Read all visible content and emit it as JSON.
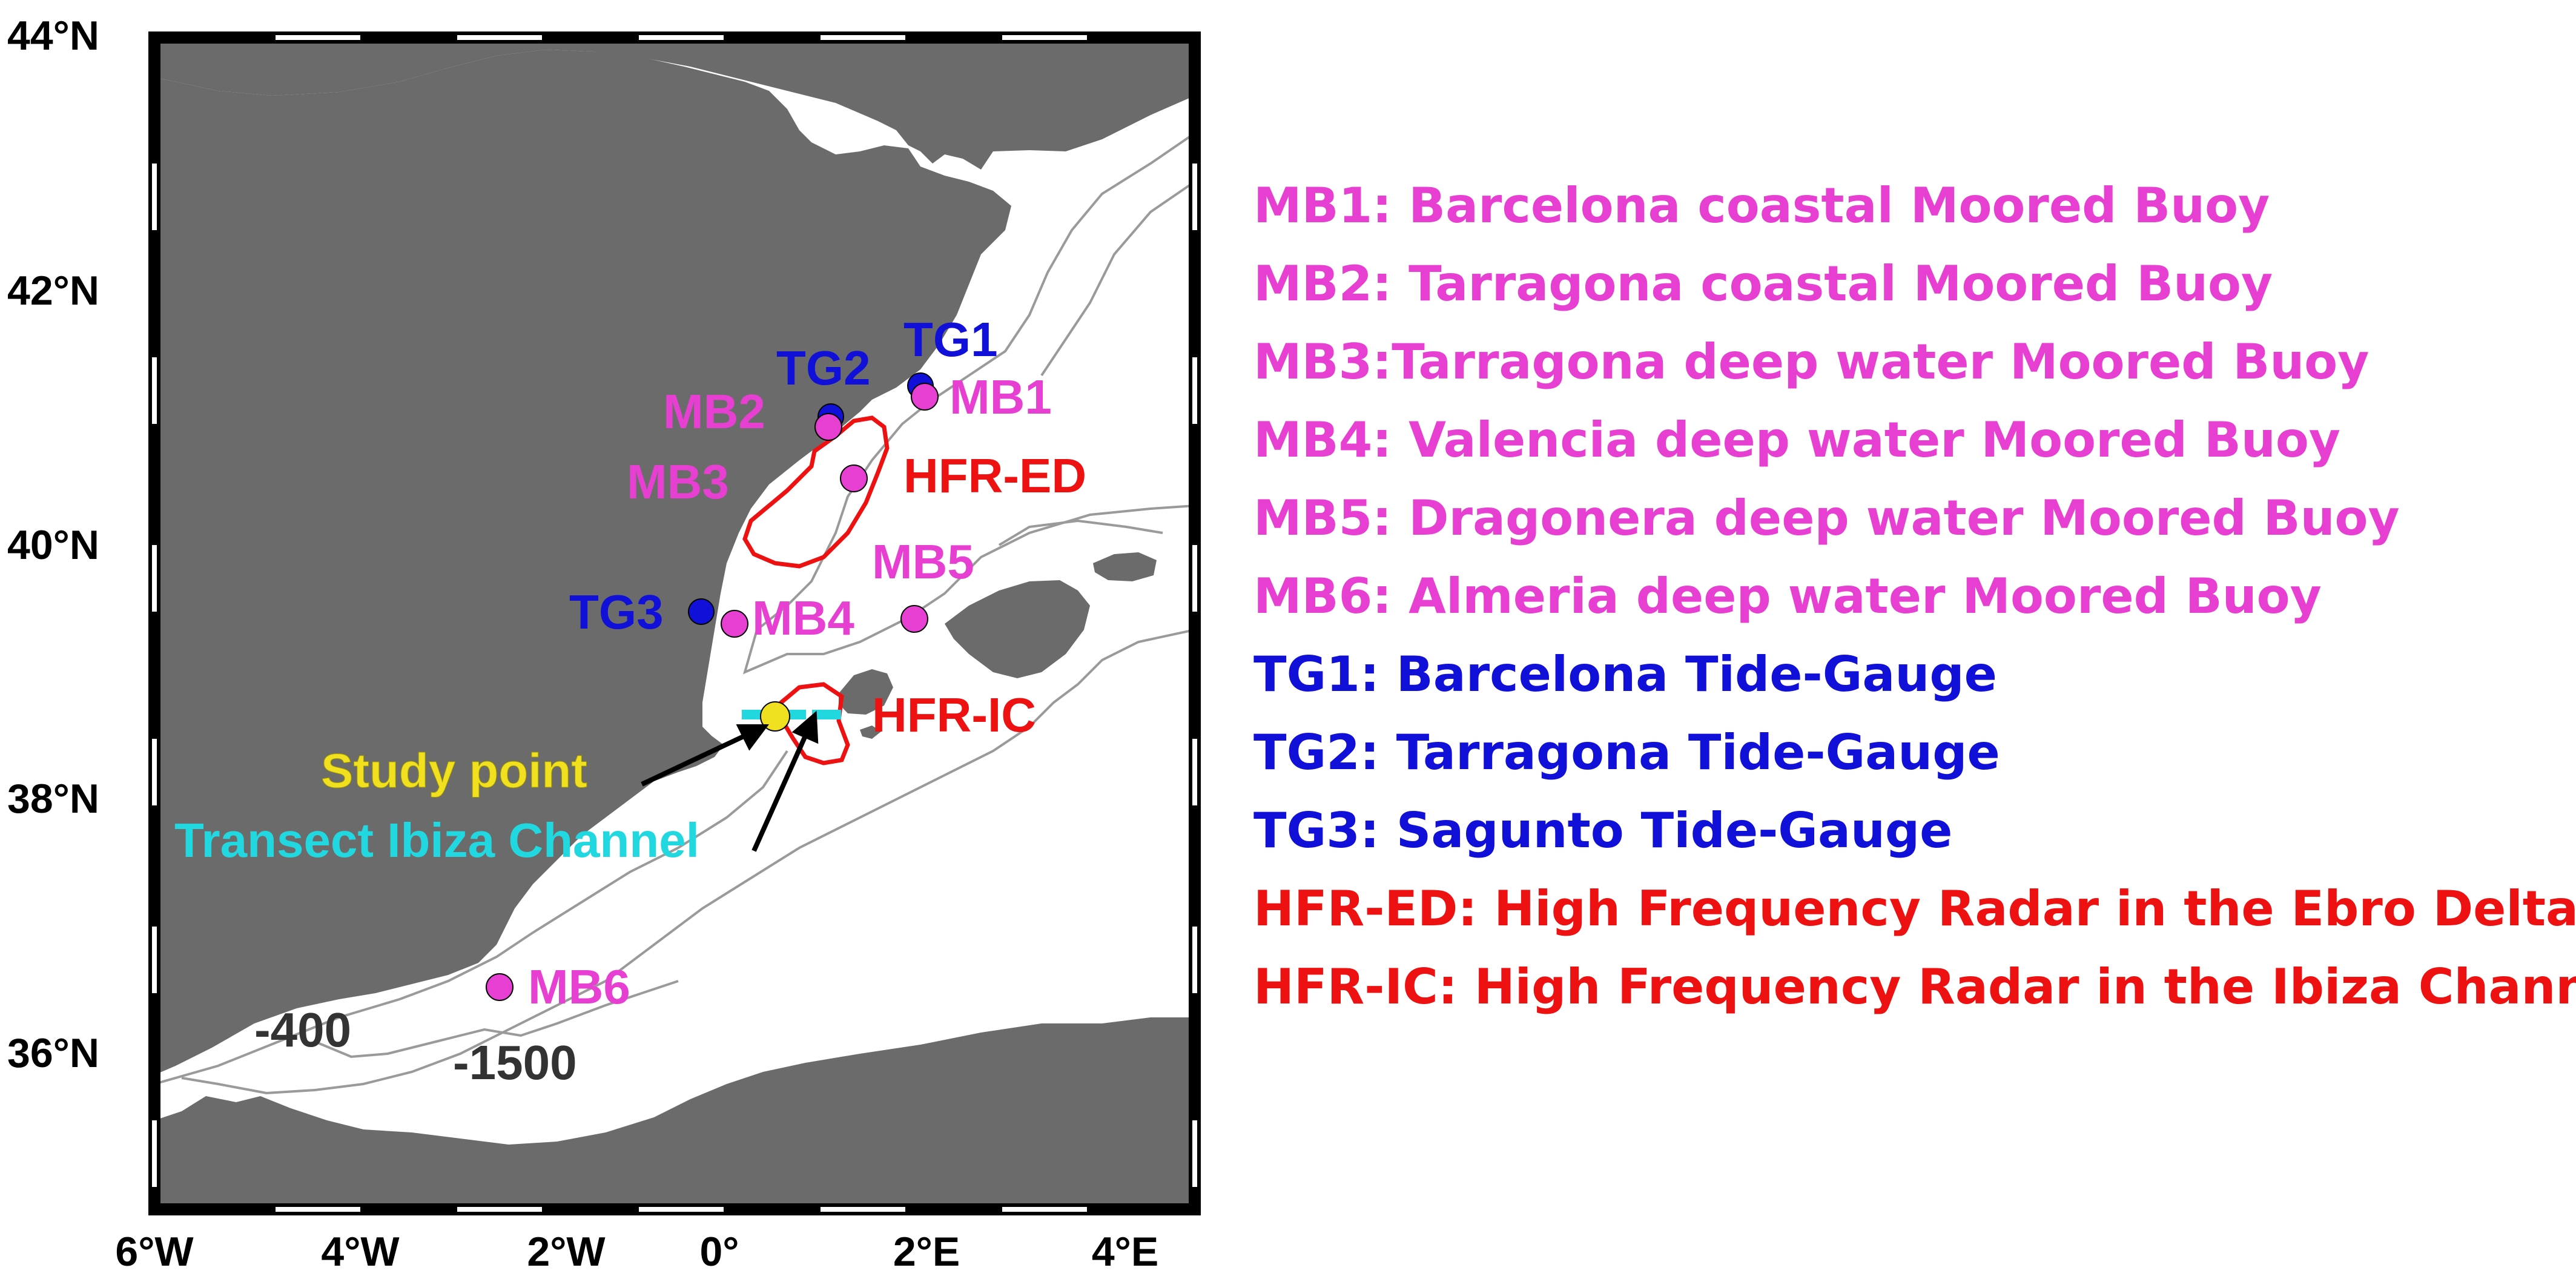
{
  "map": {
    "lat_ticks": [
      "44°N",
      "42°N",
      "40°N",
      "38°N",
      "36°N"
    ],
    "lon_ticks": [
      "6°W",
      "4°W",
      "2°W",
      "0°",
      "2°E",
      "4°E"
    ],
    "depth_labels": [
      "-400",
      "-1500"
    ],
    "stations": {
      "TG1": "TG1",
      "TG2": "TG2",
      "TG3": "TG3",
      "MB1": "MB1",
      "MB2": "MB2",
      "MB3": "MB3",
      "MB4": "MB4",
      "MB5": "MB5",
      "MB6": "MB6",
      "HFR_ED": "HFR-ED",
      "HFR_IC": "HFR-IC"
    },
    "annotations": {
      "study_point": "Study point",
      "transect": "Transect Ibiza Channel"
    }
  },
  "legend": [
    {
      "text": "MB1: Barcelona coastal Moored Buoy",
      "color": "#E83FD3"
    },
    {
      "text": "MB2: Tarragona coastal Moored Buoy",
      "color": "#E83FD3"
    },
    {
      "text": "MB3:Tarragona deep water Moored Buoy",
      "color": "#E83FD3"
    },
    {
      "text": "MB4: Valencia deep water Moored Buoy",
      "color": "#E83FD3"
    },
    {
      "text": "MB5: Dragonera deep water Moored Buoy",
      "color": "#E83FD3"
    },
    {
      "text": "MB6: Almeria deep water Moored Buoy",
      "color": "#E83FD3"
    },
    {
      "text": "TG1: Barcelona Tide-Gauge",
      "color": "#1010D8"
    },
    {
      "text": "TG2: Tarragona Tide-Gauge",
      "color": "#1010D8"
    },
    {
      "text": "TG3: Sagunto Tide-Gauge",
      "color": "#1010D8"
    },
    {
      "text": "HFR-ED: High Frequency Radar in the Ebro Delta",
      "color": "#EE1111"
    },
    {
      "text": "HFR-IC: High Frequency Radar in the Ibiza Channel",
      "color": "#EE1111"
    }
  ],
  "colors": {
    "land": "#6B6B6B",
    "sea": "#FFFFFF",
    "buoy": "#E83FD3",
    "tide_gauge": "#1010D8",
    "radar": "#EE1111",
    "study_point": "#F0E020",
    "transect": "#22D8E0"
  }
}
